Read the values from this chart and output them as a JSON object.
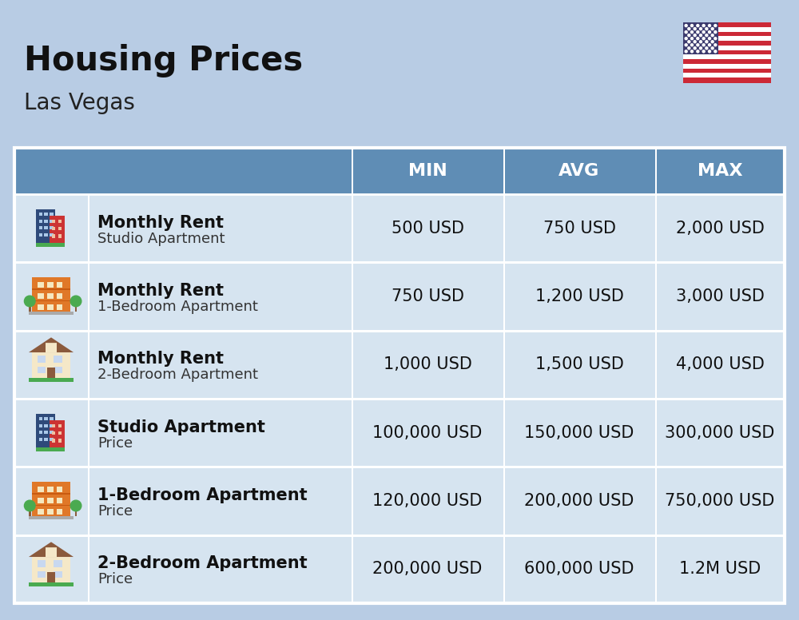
{
  "title": "Housing Prices",
  "subtitle": "Las Vegas",
  "background_color": "#b8cce4",
  "header_color": "#5f8db5",
  "header_text_color": "#ffffff",
  "row_bg_even": "#d6e4f0",
  "row_bg_odd": "#cfdcea",
  "divider_color": "#ffffff",
  "header_labels": [
    "MIN",
    "AVG",
    "MAX"
  ],
  "rows": [
    {
      "bold_label": "Monthly Rent",
      "sub_label": "Studio Apartment",
      "min": "500 USD",
      "avg": "750 USD",
      "max": "2,000 USD",
      "icon": "studio"
    },
    {
      "bold_label": "Monthly Rent",
      "sub_label": "1-Bedroom Apartment",
      "min": "750 USD",
      "avg": "1,200 USD",
      "max": "3,000 USD",
      "icon": "one_bed"
    },
    {
      "bold_label": "Monthly Rent",
      "sub_label": "2-Bedroom Apartment",
      "min": "1,000 USD",
      "avg": "1,500 USD",
      "max": "4,000 USD",
      "icon": "two_bed"
    },
    {
      "bold_label": "Studio Apartment",
      "sub_label": "Price",
      "min": "100,000 USD",
      "avg": "150,000 USD",
      "max": "300,000 USD",
      "icon": "studio"
    },
    {
      "bold_label": "1-Bedroom Apartment",
      "sub_label": "Price",
      "min": "120,000 USD",
      "avg": "200,000 USD",
      "max": "750,000 USD",
      "icon": "one_bed"
    },
    {
      "bold_label": "2-Bedroom Apartment",
      "sub_label": "Price",
      "min": "200,000 USD",
      "avg": "600,000 USD",
      "max": "1.2M USD",
      "icon": "two_bed"
    }
  ],
  "title_fontsize": 30,
  "subtitle_fontsize": 20,
  "header_fontsize": 16,
  "cell_fontsize": 15,
  "bold_label_fontsize": 15,
  "sub_label_fontsize": 13
}
